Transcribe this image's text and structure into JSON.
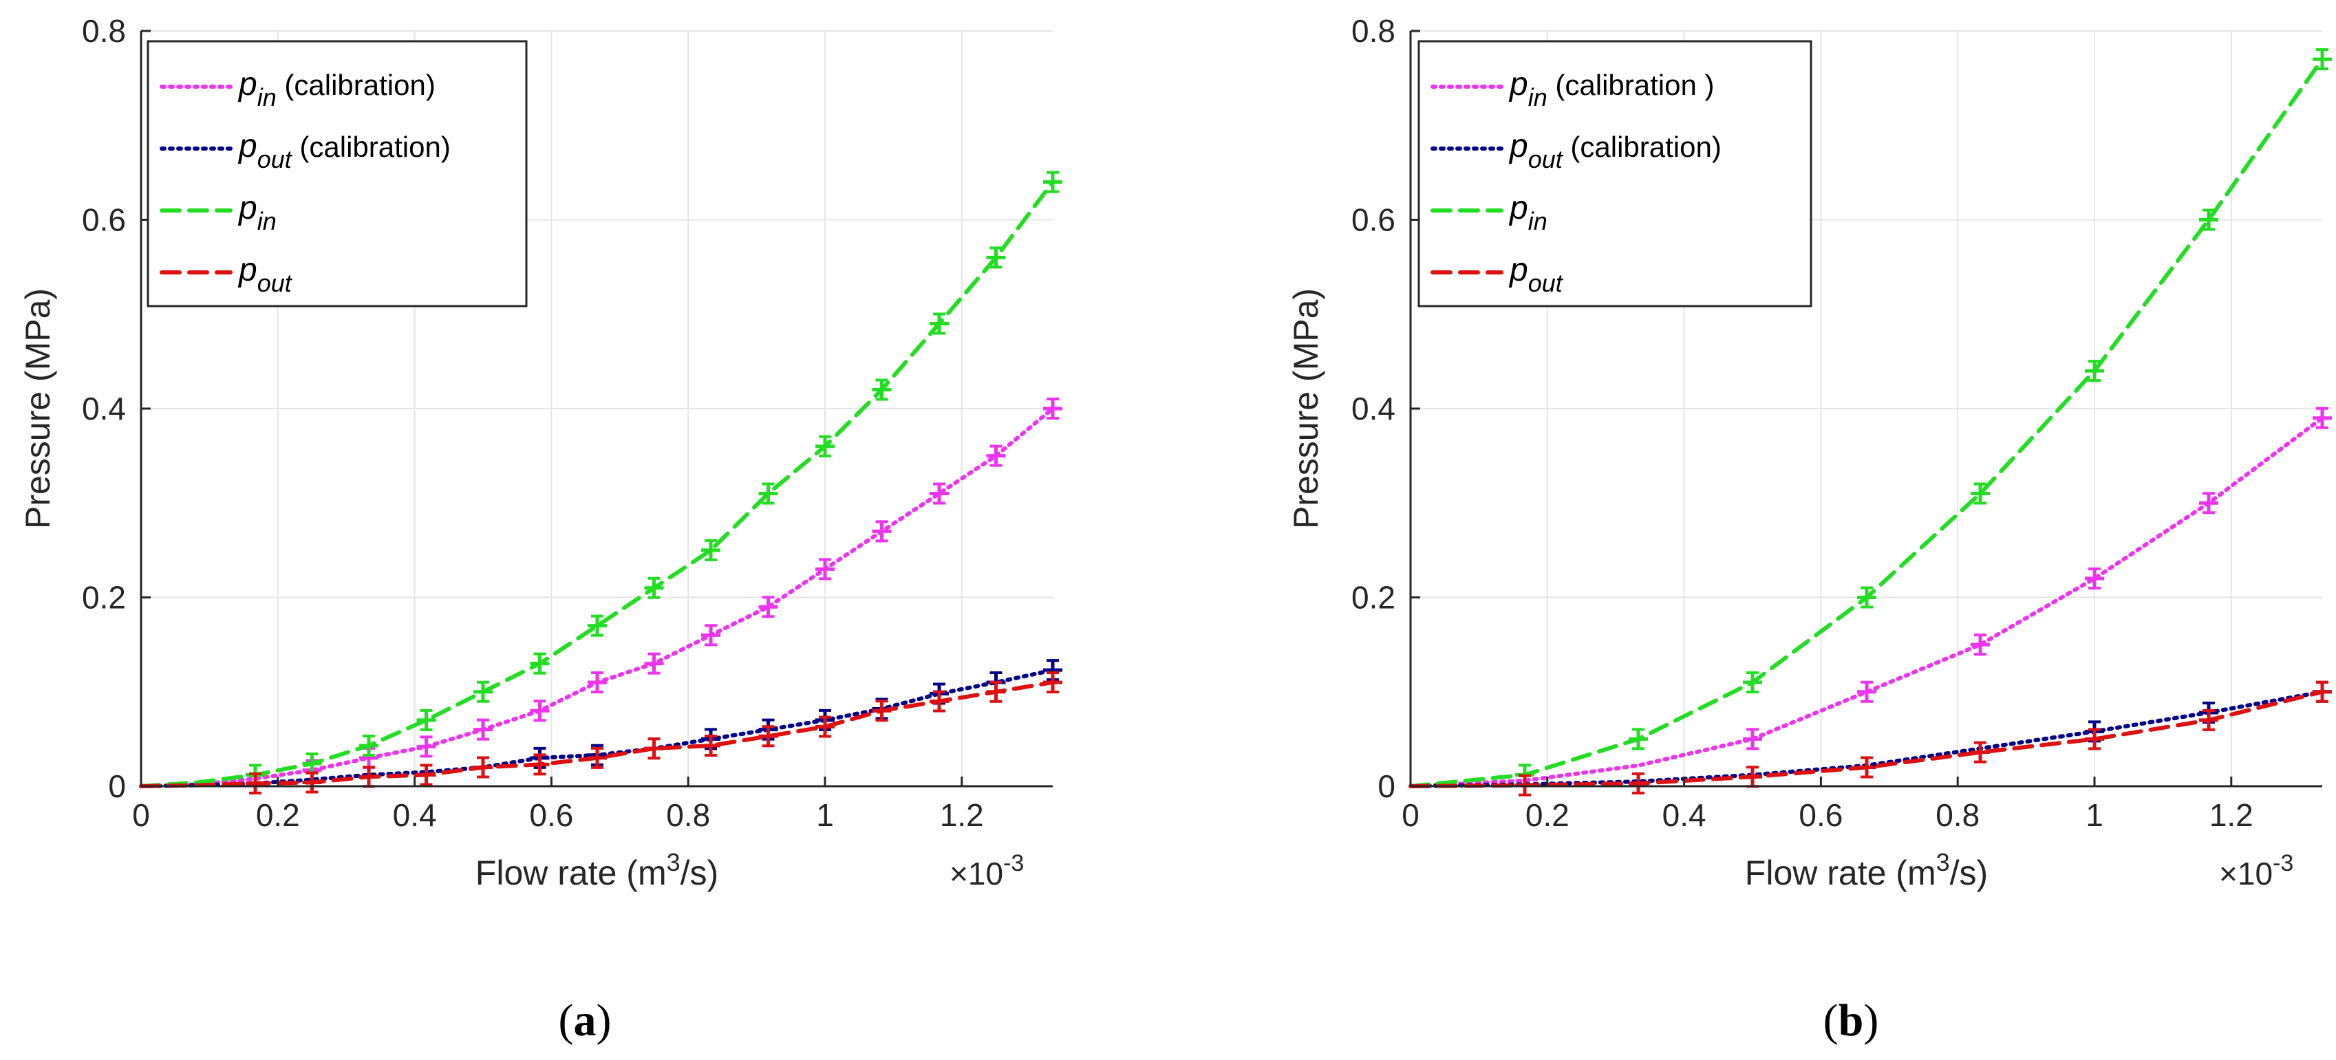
{
  "charts": [
    {
      "panel_label_text": "(a)",
      "panel_letter": "a",
      "xlabel_prefix": "Flow rate (m",
      "xlabel_exp": "3",
      "xlabel_suffix": "/s)",
      "ylabel": "Pressure (MPa)",
      "multiplier_base": "×10",
      "multiplier_exp": "-3",
      "legend": [
        {
          "sym": "p",
          "sub": "in",
          "suffix": " (calibration)"
        },
        {
          "sym": "p",
          "sub": "out",
          "suffix": " (calibration)"
        },
        {
          "sym": "p",
          "sub": "in",
          "suffix": ""
        },
        {
          "sym": "p",
          "sub": "out",
          "suffix": ""
        }
      ]
    },
    {
      "panel_label_text": "(b)",
      "panel_letter": "b",
      "xlabel_prefix": "Flow rate (m",
      "xlabel_exp": "3",
      "xlabel_suffix": "/s)",
      "ylabel": "Pressure (MPa)",
      "multiplier_base": "×10",
      "multiplier_exp": "-3",
      "legend": [
        {
          "sym": "p",
          "sub": "in",
          "suffix": " (calibration )"
        },
        {
          "sym": "p",
          "sub": "out",
          "suffix": " (calibration)"
        },
        {
          "sym": "p",
          "sub": "in",
          "suffix": ""
        },
        {
          "sym": "p",
          "sub": "out",
          "suffix": ""
        }
      ]
    }
  ],
  "colors": {
    "pin_calibration": "#ee33ee",
    "pout_calibration": "#00008b",
    "pin": "#22dd22",
    "pout": "#dd1111",
    "grid": "#e6e6e6",
    "axis": "#262626"
  },
  "chart_data": [
    {
      "type": "line",
      "xlim": [
        0,
        1.333
      ],
      "ylim": [
        0,
        0.8
      ],
      "xticks": [
        0,
        0.2,
        0.4,
        0.6,
        0.8,
        1,
        1.2
      ],
      "xtick_labels": [
        "0",
        "0.2",
        "0.4",
        "0.6",
        "0.8",
        "1",
        "1.2"
      ],
      "yticks": [
        0,
        0.2,
        0.4,
        0.6,
        0.8
      ],
      "ytick_labels": [
        "0",
        "0.2",
        "0.4",
        "0.6",
        "0.8"
      ],
      "grid": true,
      "legend_position": "top-left",
      "series": [
        {
          "key": "pin_calibration",
          "name": "p_in (calibration)",
          "style": "dotted",
          "x": [
            0,
            0.083,
            0.167,
            0.25,
            0.333,
            0.417,
            0.5,
            0.583,
            0.667,
            0.75,
            0.833,
            0.917,
            1.0,
            1.083,
            1.167,
            1.25,
            1.333
          ],
          "y": [
            0,
            0.002,
            0.008,
            0.017,
            0.03,
            0.042,
            0.06,
            0.08,
            0.11,
            0.13,
            0.16,
            0.19,
            0.23,
            0.27,
            0.31,
            0.35,
            0.4
          ],
          "markers_from": 3
        },
        {
          "key": "pout_calibration",
          "name": "p_out (calibration)",
          "style": "dotted",
          "x": [
            0,
            0.083,
            0.167,
            0.25,
            0.333,
            0.417,
            0.5,
            0.583,
            0.667,
            0.75,
            0.833,
            0.917,
            1.0,
            1.083,
            1.167,
            1.25,
            1.333
          ],
          "y": [
            0,
            0.001,
            0.003,
            0.007,
            0.012,
            0.015,
            0.02,
            0.03,
            0.033,
            0.04,
            0.05,
            0.06,
            0.07,
            0.082,
            0.098,
            0.11,
            0.123
          ],
          "markers_from": 7
        },
        {
          "key": "pin",
          "name": "p_in",
          "style": "dashed",
          "x": [
            0,
            0.083,
            0.167,
            0.25,
            0.333,
            0.417,
            0.5,
            0.583,
            0.667,
            0.75,
            0.833,
            0.917,
            1.0,
            1.083,
            1.167,
            1.25,
            1.333
          ],
          "y": [
            0,
            0.004,
            0.012,
            0.024,
            0.043,
            0.07,
            0.1,
            0.13,
            0.17,
            0.21,
            0.25,
            0.31,
            0.36,
            0.42,
            0.49,
            0.56,
            0.64
          ],
          "markers_from": 2
        },
        {
          "key": "pout",
          "name": "p_out",
          "style": "dashed",
          "x": [
            0,
            0.083,
            0.167,
            0.25,
            0.333,
            0.417,
            0.5,
            0.583,
            0.667,
            0.75,
            0.833,
            0.917,
            1.0,
            1.083,
            1.167,
            1.25,
            1.333
          ],
          "y": [
            0,
            0.001,
            0.003,
            0.004,
            0.01,
            0.012,
            0.02,
            0.023,
            0.03,
            0.04,
            0.043,
            0.053,
            0.063,
            0.08,
            0.09,
            0.1,
            0.11
          ],
          "markers_from": 2
        }
      ]
    },
    {
      "type": "line",
      "xlim": [
        0,
        1.333
      ],
      "ylim": [
        0,
        0.8
      ],
      "xticks": [
        0,
        0.2,
        0.4,
        0.6,
        0.8,
        1,
        1.2
      ],
      "xtick_labels": [
        "0",
        "0.2",
        "0.4",
        "0.6",
        "0.8",
        "1",
        "1.2"
      ],
      "yticks": [
        0,
        0.2,
        0.4,
        0.6,
        0.8
      ],
      "ytick_labels": [
        "0",
        "0.2",
        "0.4",
        "0.6",
        "0.8"
      ],
      "grid": true,
      "legend_position": "top-left",
      "series": [
        {
          "key": "pin_calibration",
          "name": "p_in (calibration )",
          "style": "dotted",
          "x": [
            0,
            0.167,
            0.333,
            0.5,
            0.667,
            0.833,
            1.0,
            1.167,
            1.333
          ],
          "y": [
            0,
            0.006,
            0.022,
            0.05,
            0.1,
            0.15,
            0.22,
            0.3,
            0.39
          ],
          "markers_from": 3
        },
        {
          "key": "pout_calibration",
          "name": "p_out (calibration)",
          "style": "dotted",
          "x": [
            0,
            0.167,
            0.333,
            0.5,
            0.667,
            0.833,
            1.0,
            1.167,
            1.333
          ],
          "y": [
            0,
            0.002,
            0.005,
            0.012,
            0.022,
            0.04,
            0.058,
            0.078,
            0.1
          ],
          "markers_from": 6
        },
        {
          "key": "pin",
          "name": "p_in",
          "style": "dashed",
          "x": [
            0,
            0.167,
            0.333,
            0.5,
            0.667,
            0.833,
            1.0,
            1.167,
            1.333
          ],
          "y": [
            0,
            0.012,
            0.05,
            0.11,
            0.2,
            0.31,
            0.44,
            0.6,
            0.77
          ],
          "markers_from": 1
        },
        {
          "key": "pout",
          "name": "p_out",
          "style": "dashed",
          "x": [
            0,
            0.167,
            0.333,
            0.5,
            0.667,
            0.833,
            1.0,
            1.167,
            1.333
          ],
          "y": [
            0,
            0.001,
            0.003,
            0.01,
            0.02,
            0.036,
            0.05,
            0.07,
            0.1
          ],
          "markers_from": 1
        }
      ]
    }
  ]
}
